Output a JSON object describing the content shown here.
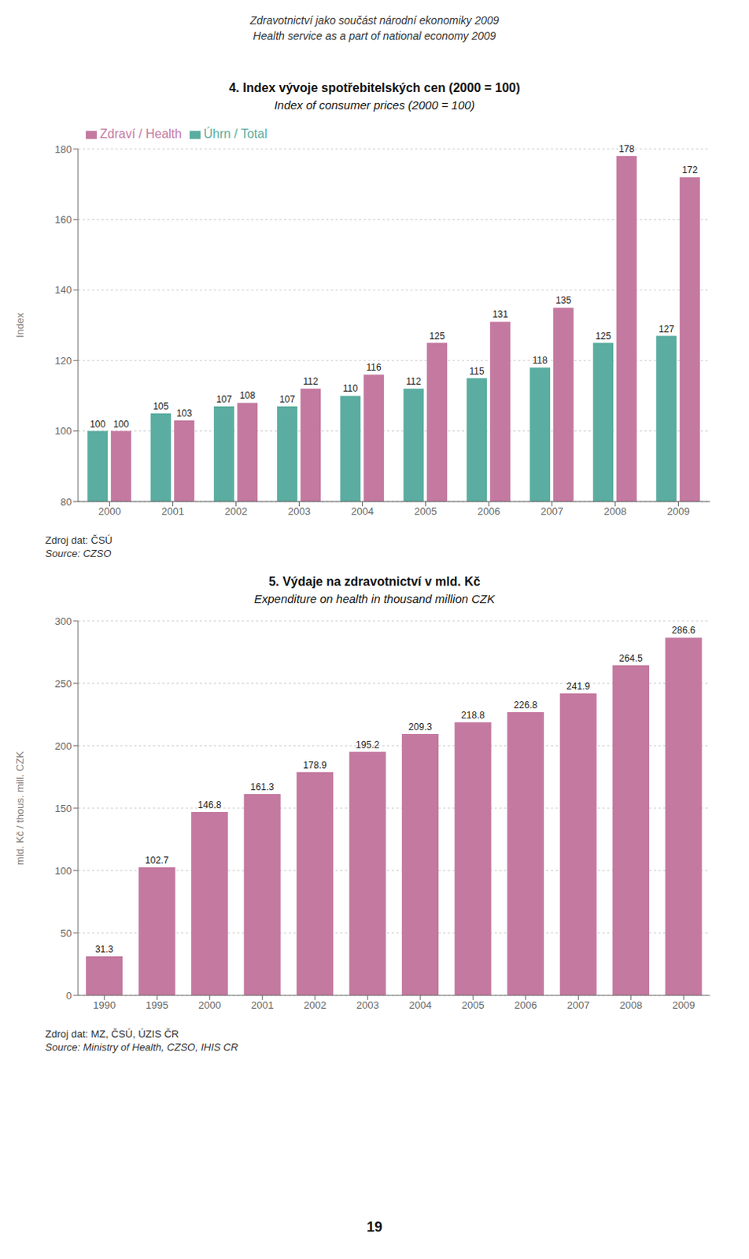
{
  "title": "Zdravotnictví jako součást národní ekonomiky 2009",
  "subtitle": "Health service as a part of national economy 2009",
  "annotations": [
    "19"
  ],
  "chart_data": [
    {
      "type": "bar",
      "title": "4. Index vývoje spotřebitelských cen (2000 = 100)",
      "subtitle": "Index of consumer prices (2000 = 100)",
      "ylabel": "Index",
      "categories": [
        "2000",
        "2001",
        "2002",
        "2003",
        "2004",
        "2005",
        "2006",
        "2007",
        "2008",
        "2009"
      ],
      "series": [
        {
          "name": "Úhrn / Total",
          "color": "#5aada0",
          "values": [
            100,
            105,
            107,
            107,
            110,
            112,
            115,
            118,
            125,
            127
          ]
        },
        {
          "name": "Zdraví / Health",
          "color": "#c479a0",
          "values": [
            100,
            103,
            108,
            112,
            116,
            125,
            131,
            135,
            178,
            172
          ]
        }
      ],
      "ylim": [
        80,
        180
      ],
      "yticks": [
        80,
        100,
        120,
        140,
        160,
        180
      ],
      "grid": true,
      "legend": "upper left",
      "data_labels": true,
      "annotations": [
        "Zdroj dat: ČSÚ",
        "Source: CZSO"
      ]
    },
    {
      "type": "bar",
      "title": "5. Výdaje na zdravotnictví v mld. Kč",
      "subtitle": "Expenditure on health in thousand million CZK",
      "ylabel": "mld. Kč / thous. mill. CZK",
      "categories": [
        "1990",
        "1995",
        "2000",
        "2001",
        "2002",
        "2003",
        "2004",
        "2005",
        "2006",
        "2007",
        "2008",
        "2009"
      ],
      "values": [
        31.3,
        102.7,
        146.8,
        161.3,
        178.9,
        195.2,
        209.3,
        218.8,
        226.8,
        241.9,
        264.5,
        286.6
      ],
      "color": "#c479a0",
      "ylim": [
        0,
        300
      ],
      "yticks": [
        0,
        50,
        100,
        150,
        200,
        250,
        300
      ],
      "grid": true,
      "data_labels": true,
      "annotations": [
        "Zdroj dat: MZ, ČSÚ, ÚZIS ČR",
        "Source: Ministry of Health, CZSO, IHIS CR"
      ]
    }
  ]
}
